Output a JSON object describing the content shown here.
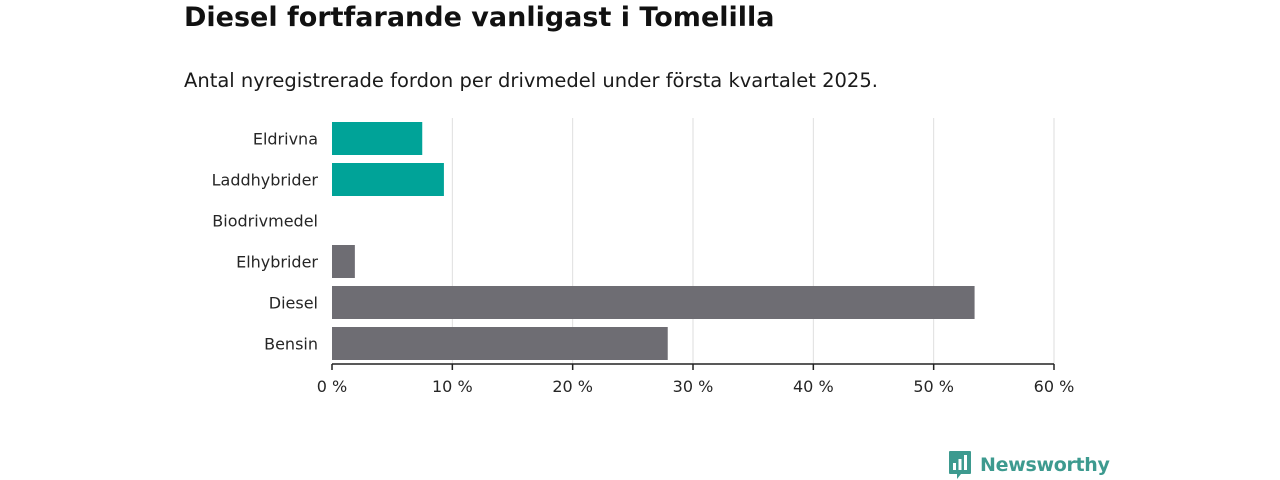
{
  "title": "Diesel fortfarande vanligast i Tomelilla",
  "subtitle": "Antal nyregistrerade fordon per drivmedel under första kvartalet 2025.",
  "brand": {
    "name": "Newsworthy",
    "icon": "newsworthy-logo-icon"
  },
  "colors": {
    "highlight": "#00a398",
    "default": "#6e6d73",
    "grid": "#dedede",
    "axis": "#222222",
    "brand": "#3d9a8f"
  },
  "chart_data": {
    "type": "bar",
    "orientation": "horizontal",
    "categories": [
      "Eldrivna",
      "Laddhybrider",
      "Biodrivmedel",
      "Elhybrider",
      "Diesel",
      "Bensin"
    ],
    "values": [
      7.5,
      9.3,
      0,
      1.9,
      53.4,
      27.9
    ],
    "highlighted": [
      "Eldrivna",
      "Laddhybrider"
    ],
    "xlim": [
      0,
      60
    ],
    "xticks": [
      0,
      10,
      20,
      30,
      40,
      50,
      60
    ],
    "xtick_labels": [
      "0 %",
      "10 %",
      "20 %",
      "30 %",
      "40 %",
      "50 %",
      "60 %"
    ],
    "grid": true,
    "legend": "none"
  }
}
